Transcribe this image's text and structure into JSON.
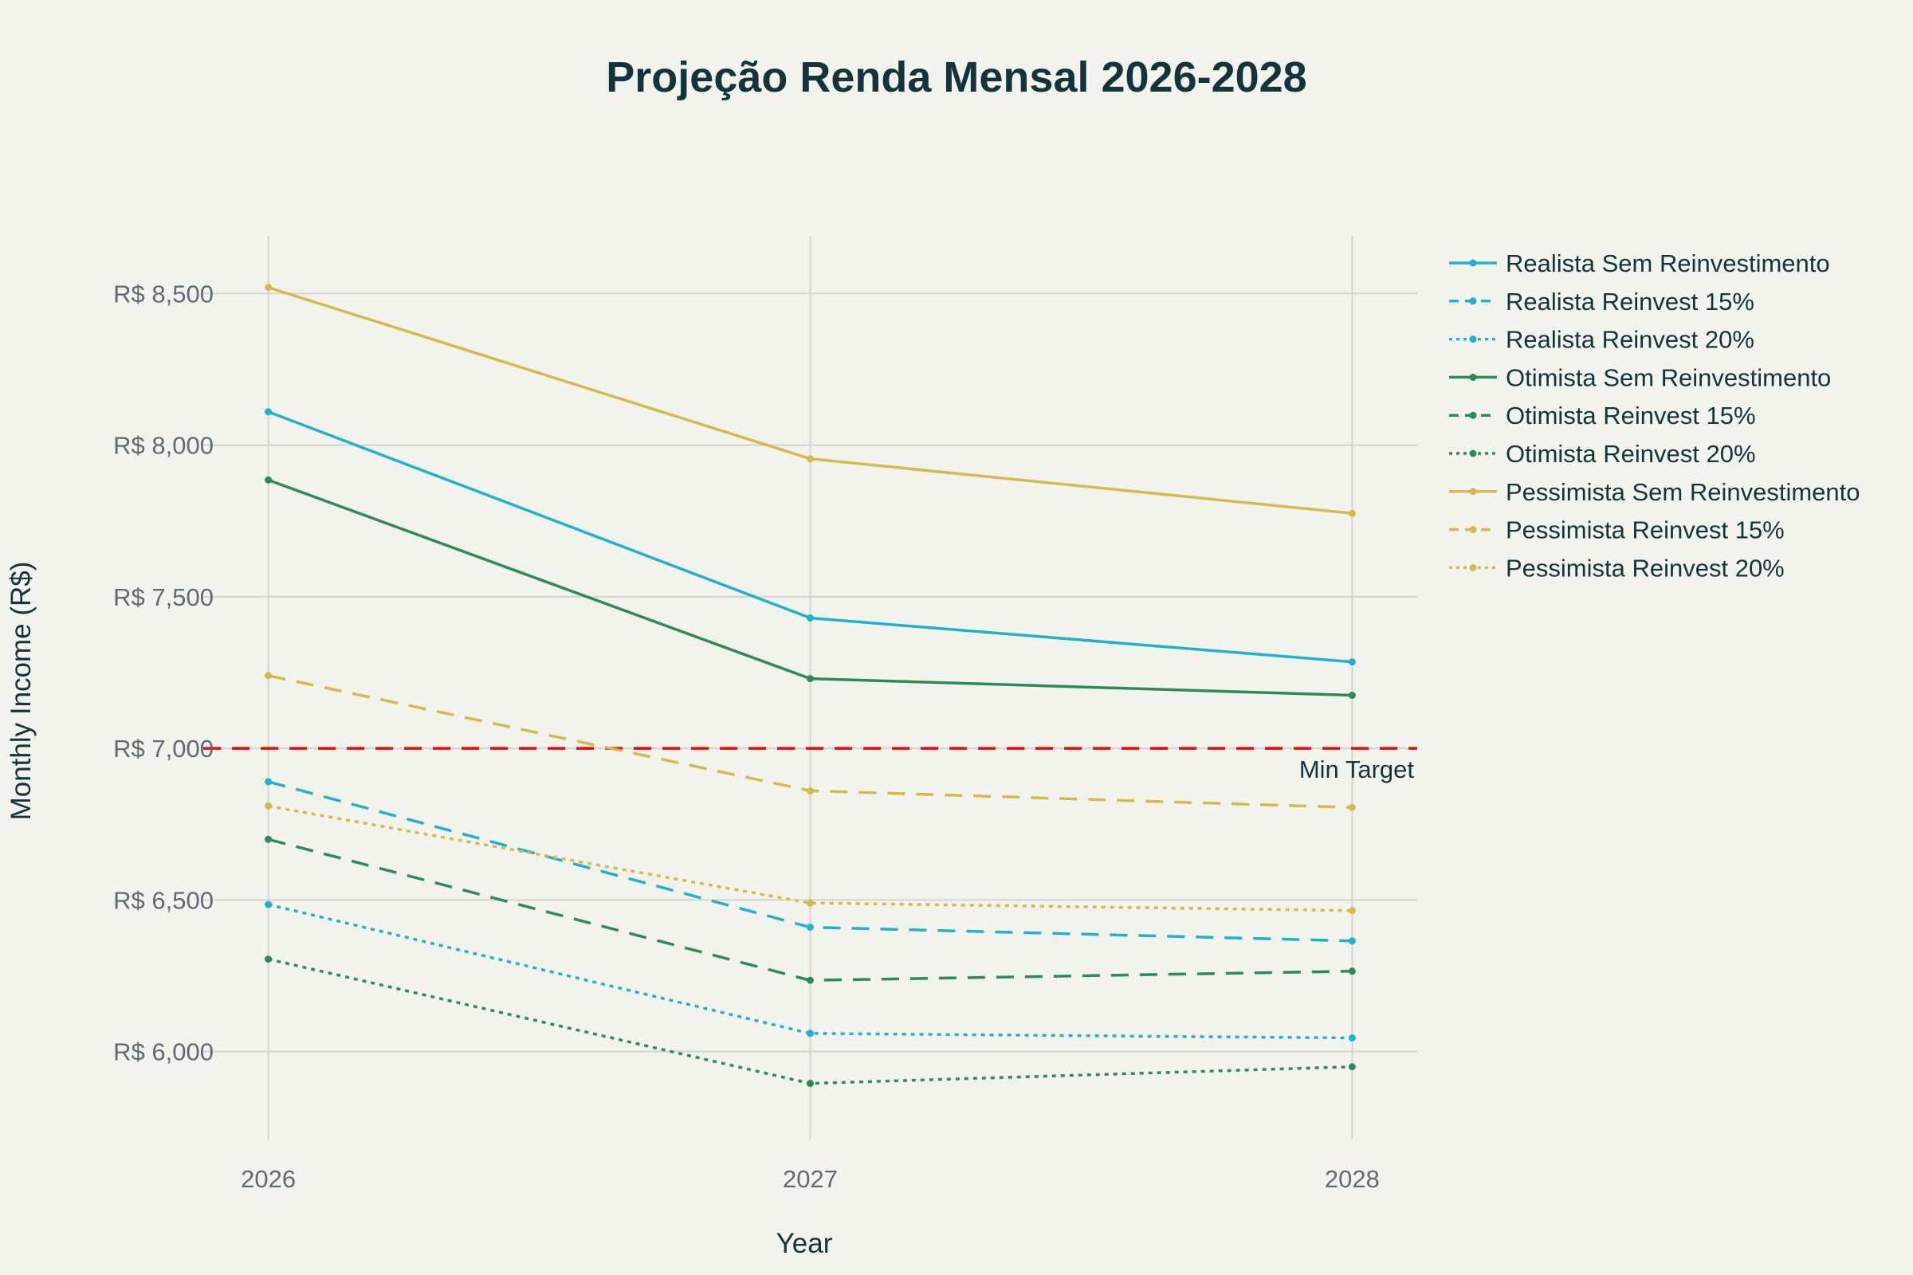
{
  "chart_data": {
    "type": "line",
    "title": "Projeção Renda Mensal 2026-2028",
    "xlabel": "Year",
    "ylabel": "Monthly Income (R$)",
    "x": [
      2026,
      2027,
      2028
    ],
    "x_tick_labels": [
      "2026",
      "2027",
      "2028"
    ],
    "y_ticks": [
      6000,
      6500,
      7000,
      7500,
      8000,
      8500
    ],
    "y_tick_labels": [
      "R$ 6,000",
      "R$ 6,500",
      "R$ 7,000",
      "R$ 7,500",
      "R$ 8,000",
      "R$ 8,500"
    ],
    "ylim": [
      5710,
      8690
    ],
    "xlim": [
      2025.88,
      2028.12
    ],
    "grid": true,
    "legend_position": "top-right",
    "series": [
      {
        "name": "Realista Sem Reinvestimento",
        "color": "#21B0CD",
        "dash": "solid",
        "values": [
          8110,
          7430,
          7285
        ]
      },
      {
        "name": "Realista Reinvest 15%",
        "color": "#21B0CD",
        "dash": "dash",
        "values": [
          6890,
          6410,
          6365
        ]
      },
      {
        "name": "Realista Reinvest 20%",
        "color": "#21B0CD",
        "dash": "dot",
        "values": [
          6485,
          6060,
          6045
        ]
      },
      {
        "name": "Otimista Sem Reinvestimento",
        "color": "#2E8B57",
        "dash": "solid",
        "values": [
          7885,
          7230,
          7175
        ]
      },
      {
        "name": "Otimista Reinvest 15%",
        "color": "#2E8B57",
        "dash": "dash",
        "values": [
          6700,
          6235,
          6265
        ]
      },
      {
        "name": "Otimista Reinvest 20%",
        "color": "#2E8B57",
        "dash": "dot",
        "values": [
          6305,
          5895,
          5950
        ]
      },
      {
        "name": "Pessimista Sem Reinvestimento",
        "color": "#D2BA4C",
        "dash": "solid",
        "values": [
          8520,
          7955,
          7775
        ]
      },
      {
        "name": "Pessimista Reinvest 15%",
        "color": "#D2BA4C",
        "dash": "dash",
        "values": [
          7240,
          6860,
          6805
        ]
      },
      {
        "name": "Pessimista Reinvest 20%",
        "color": "#D2BA4C",
        "dash": "dot",
        "values": [
          6810,
          6490,
          6465
        ]
      }
    ],
    "reference_line": {
      "value": 7000,
      "label": "Min Target",
      "color": "#FF0000",
      "dash": "dash"
    }
  }
}
